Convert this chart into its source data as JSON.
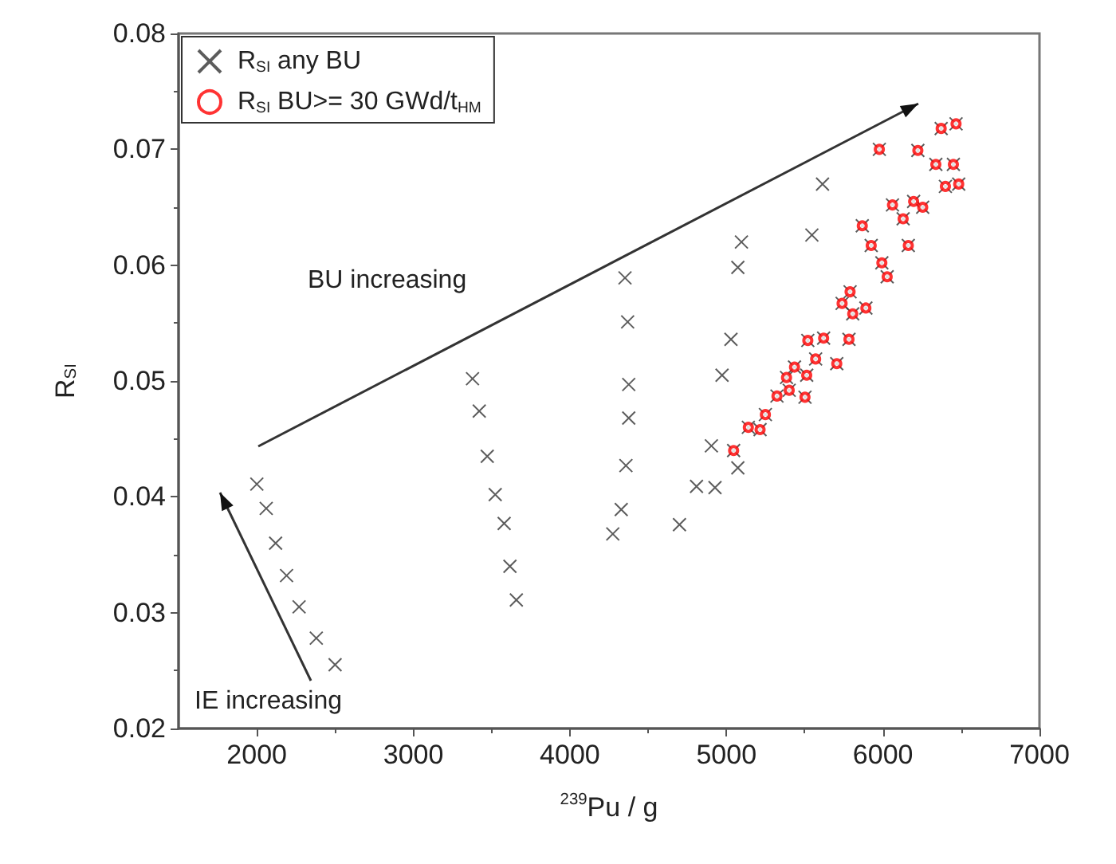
{
  "chart_data": {
    "type": "scatter",
    "xlabel": "$^{239}$Pu / g",
    "ylabel": "R$_{SI}$",
    "xlim": [
      1500,
      7000
    ],
    "xticks": [
      2000,
      3000,
      4000,
      5000,
      6000,
      7000
    ],
    "ylim": [
      0.02,
      0.08
    ],
    "yticks": [
      0.02,
      0.03,
      0.04,
      0.05,
      0.06,
      0.07,
      0.08
    ],
    "grid": false,
    "legend": "top left",
    "annotations": [
      "BU increasing",
      "IE increasing"
    ],
    "series": [
      {
        "name": "R$_{SI}$ any BU",
        "color": "#333333",
        "marker": "cross",
        "x": [
          2000,
          2060,
          2120,
          2190,
          2270,
          2380,
          2500,
          3378,
          3421,
          3472,
          3523,
          3580,
          3617,
          3658,
          4352,
          4369,
          4376,
          4376,
          4358,
          4328,
          4274,
          5614,
          5546,
          5096,
          5073,
          5029,
          4972,
          4904,
          5073,
          4700,
          4809,
          4927,
          5046,
          5140,
          5215,
          5249,
          5323,
          5401,
          5384,
          5435,
          5502,
          5513,
          5520,
          5570,
          5621,
          5705,
          5783,
          5739,
          5790,
          5807,
          5891,
          5925,
          5993,
          6027,
          5868,
          6162,
          6129,
          6061,
          6196,
          6254,
          5977,
          6223,
          6338,
          6450,
          6399,
          6484,
          6372,
          6467
        ],
        "values": [
          0.0411,
          0.039,
          0.036,
          0.0332,
          0.0305,
          0.0278,
          0.0255,
          0.0502,
          0.0474,
          0.0435,
          0.0402,
          0.0377,
          0.034,
          0.0311,
          0.0589,
          0.0551,
          0.0497,
          0.0468,
          0.0427,
          0.0389,
          0.0368,
          0.067,
          0.0626,
          0.062,
          0.0598,
          0.0536,
          0.0505,
          0.0444,
          0.0425,
          0.0376,
          0.0409,
          0.0408,
          0.044,
          0.046,
          0.0458,
          0.0471,
          0.0487,
          0.0492,
          0.0503,
          0.0512,
          0.0486,
          0.0505,
          0.0535,
          0.0519,
          0.0537,
          0.0515,
          0.0536,
          0.0567,
          0.0577,
          0.0558,
          0.0563,
          0.0617,
          0.0602,
          0.059,
          0.0634,
          0.0617,
          0.064,
          0.0652,
          0.0655,
          0.065,
          0.07,
          0.0699,
          0.0687,
          0.0687,
          0.0668,
          0.067,
          0.0718,
          0.0722
        ]
      },
      {
        "name": "R$_{SI}$ BU>= 30 GWd/t$_{HM}$",
        "color": "#ff0000",
        "marker": "circle",
        "x": [
          5046,
          5140,
          5215,
          5249,
          5323,
          5401,
          5384,
          5435,
          5502,
          5513,
          5520,
          5570,
          5621,
          5705,
          5783,
          5739,
          5790,
          5807,
          5891,
          5925,
          5993,
          6027,
          5868,
          6162,
          6129,
          6061,
          6196,
          6254,
          5977,
          6223,
          6338,
          6450,
          6399,
          6484,
          6372,
          6467
        ],
        "values": [
          0.044,
          0.046,
          0.0458,
          0.0471,
          0.0487,
          0.0492,
          0.0503,
          0.0512,
          0.0486,
          0.0505,
          0.0535,
          0.0519,
          0.0537,
          0.0515,
          0.0536,
          0.0567,
          0.0577,
          0.0558,
          0.0563,
          0.0617,
          0.0602,
          0.059,
          0.0634,
          0.0617,
          0.064,
          0.0652,
          0.0655,
          0.065,
          0.07,
          0.0699,
          0.0687,
          0.0687,
          0.0668,
          0.067,
          0.0718,
          0.0722
        ]
      }
    ]
  }
}
